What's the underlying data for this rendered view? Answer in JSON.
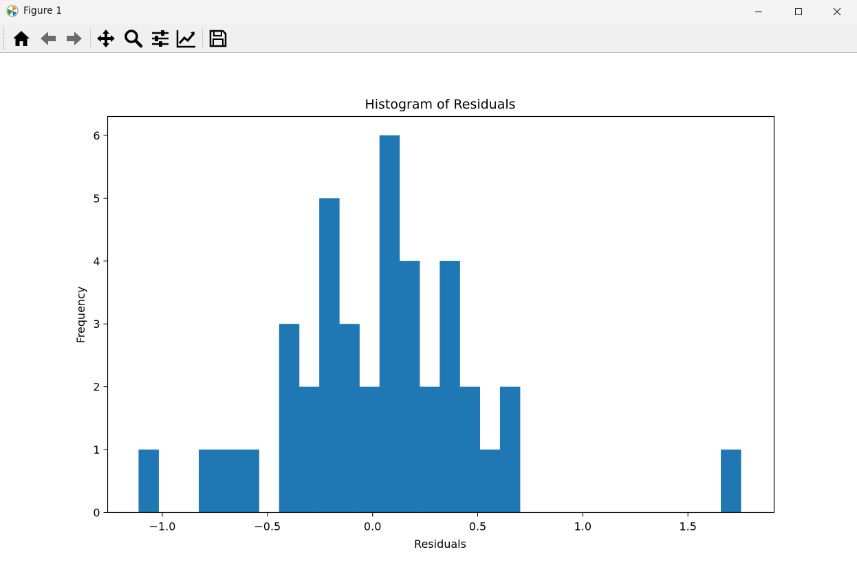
{
  "window": {
    "title": "Figure 1",
    "icons": [
      "matplotlib-logo-icon",
      "minimize-icon",
      "maximize-icon",
      "close-icon"
    ]
  },
  "toolbar": {
    "buttons": [
      {
        "name": "home-button",
        "icon": "home-icon"
      },
      {
        "name": "back-button",
        "icon": "arrow-left-icon"
      },
      {
        "name": "forward-button",
        "icon": "arrow-right-icon"
      },
      {
        "name": "pan-button",
        "icon": "move-icon"
      },
      {
        "name": "zoom-button",
        "icon": "magnifier-icon"
      },
      {
        "name": "subplots-button",
        "icon": "sliders-icon"
      },
      {
        "name": "edit-curves-button",
        "icon": "line-chart-icon"
      },
      {
        "name": "save-button",
        "icon": "floppy-disk-icon"
      }
    ]
  },
  "chart_data": {
    "type": "bar",
    "title": "Histogram of Residuals",
    "xlabel": "Residuals",
    "ylabel": "Frequency",
    "bar_color": "#1f77b4",
    "xlim": [
      -1.26,
      1.91
    ],
    "ylim": [
      0,
      6.3
    ],
    "grid": false,
    "xticks": [
      -1.0,
      -0.5,
      0.0,
      0.5,
      1.0,
      1.5
    ],
    "xtick_labels": [
      "−1.0",
      "−0.5",
      "0.0",
      "0.5",
      "1.0",
      "1.5"
    ],
    "yticks": [
      0,
      1,
      2,
      3,
      4,
      5,
      6
    ],
    "ytick_labels": [
      "0",
      "1",
      "2",
      "3",
      "4",
      "5",
      "6"
    ],
    "bin_start": -1.113,
    "bin_width": 0.0955,
    "values": [
      1,
      0,
      0,
      1,
      1,
      1,
      0,
      3,
      2,
      5,
      3,
      2,
      6,
      4,
      2,
      4,
      2,
      1,
      2,
      0,
      0,
      0,
      0,
      0,
      0,
      0,
      0,
      0,
      0,
      1
    ]
  }
}
